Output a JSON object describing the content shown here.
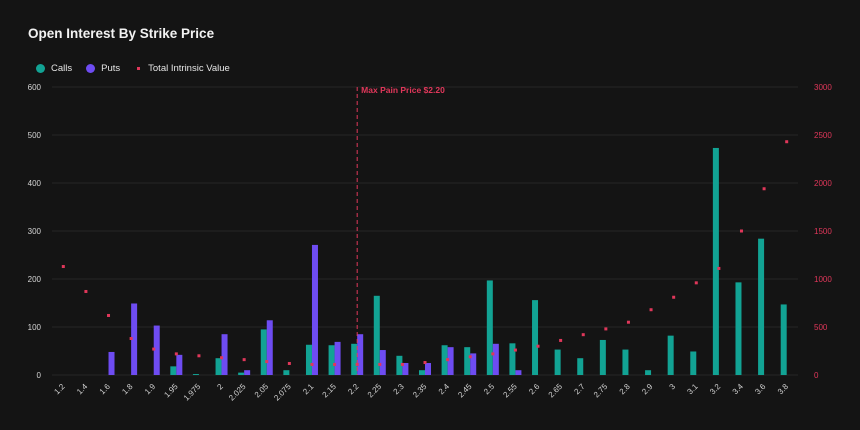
{
  "chart_data": {
    "type": "bar",
    "title": "Open Interest By Strike Price",
    "legend": [
      {
        "name": "Calls",
        "marker": "circle"
      },
      {
        "name": "Puts",
        "marker": "circle"
      },
      {
        "name": "Total Intrinsic Value",
        "marker": "square"
      }
    ],
    "categories": [
      "1.2",
      "1.4",
      "1.6",
      "1.8",
      "1.9",
      "1.95",
      "1.975",
      "2",
      "2.025",
      "2.05",
      "2.075",
      "2.1",
      "2.15",
      "2.2",
      "2.25",
      "2.3",
      "2.35",
      "2.4",
      "2.45",
      "2.5",
      "2.55",
      "2.6",
      "2.65",
      "2.7",
      "2.75",
      "2.8",
      "2.9",
      "3",
      "3.1",
      "3.2",
      "3.4",
      "3.6",
      "3.8"
    ],
    "series": [
      {
        "name": "Calls",
        "color": "#12a394",
        "axis": "left",
        "values": [
          0,
          0,
          0,
          0,
          0,
          18,
          2,
          35,
          5,
          95,
          10,
          63,
          62,
          65,
          165,
          40,
          10,
          62,
          58,
          197,
          66,
          156,
          53,
          35,
          73,
          53,
          10,
          82,
          49,
          473,
          193,
          284,
          147
        ]
      },
      {
        "name": "Puts",
        "color": "#6e4cf2",
        "axis": "left",
        "values": [
          0,
          0,
          48,
          149,
          103,
          42,
          0,
          85,
          10,
          114,
          0,
          271,
          69,
          85,
          52,
          25,
          25,
          58,
          45,
          65,
          10,
          0,
          0,
          0,
          0,
          0,
          0,
          0,
          0,
          0,
          0,
          0,
          0
        ]
      },
      {
        "name": "Total Intrinsic Value",
        "color": "#e0375a",
        "axis": "right",
        "values": [
          1130,
          870,
          620,
          380,
          270,
          220,
          200,
          180,
          160,
          140,
          120,
          110,
          110,
          110,
          110,
          110,
          130,
          160,
          190,
          220,
          260,
          300,
          360,
          420,
          480,
          550,
          680,
          810,
          960,
          1110,
          1500,
          1940,
          2430
        ]
      }
    ],
    "y_left": {
      "min": 0,
      "max": 600,
      "ticks": [
        "0",
        "100",
        "200",
        "300",
        "400",
        "500",
        "600"
      ]
    },
    "y_right": {
      "min": 0,
      "max": 3000,
      "ticks": [
        "0",
        "500",
        "1000",
        "1500",
        "2000",
        "2500",
        "3000"
      ]
    },
    "annotation": {
      "label": "Max Pain Price $2.20",
      "category": "2.2",
      "color": "#e0375a"
    },
    "grid": true,
    "legend_position": "top-left"
  },
  "colors": {
    "background": "#141414",
    "grid": "#262626",
    "calls": "#12a394",
    "puts": "#6e4cf2",
    "intrinsic": "#e0375a",
    "right_axis_text": "#e0375a"
  }
}
